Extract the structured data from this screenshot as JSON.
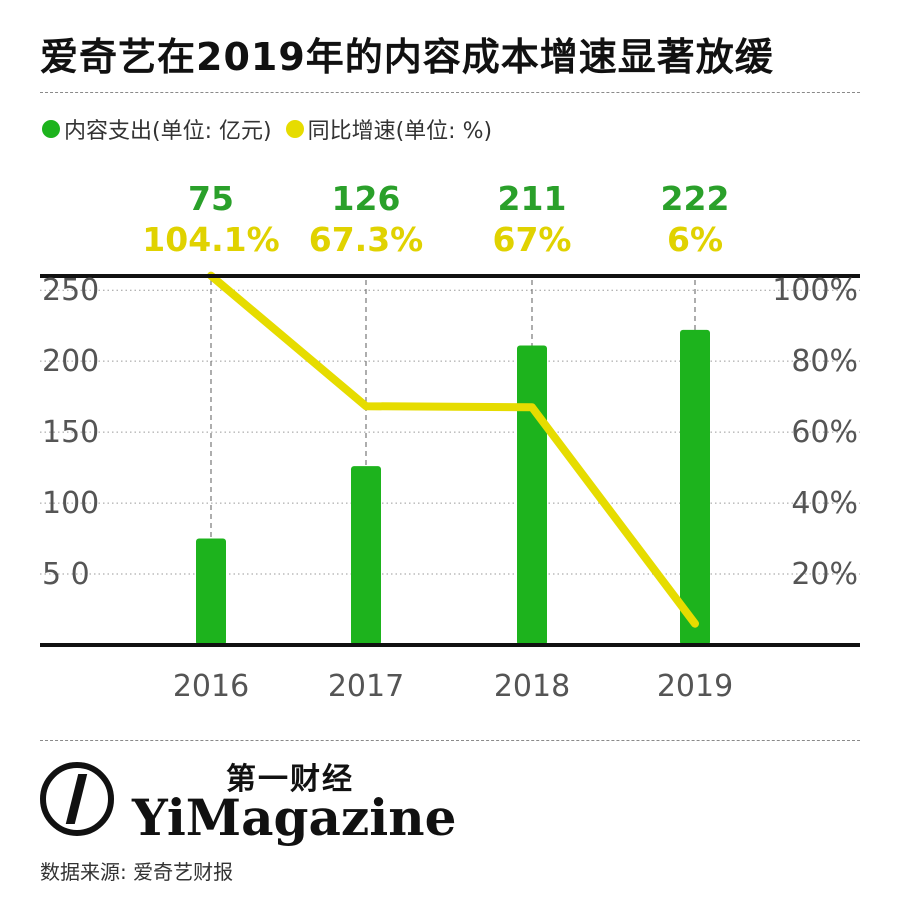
{
  "title": "爱奇艺在2019年的内容成本增速显著放缓",
  "legend": [
    {
      "label": "内容支出(单位: 亿元)",
      "color": "#1db31d"
    },
    {
      "label": "同比增速(单位: %)",
      "color": "#e6dc00"
    }
  ],
  "chart_data": {
    "type": "bar",
    "categories": [
      "2016",
      "2017",
      "2018",
      "2019"
    ],
    "series": [
      {
        "name": "内容支出(单位: 亿元)",
        "type": "bar",
        "axis": "left",
        "color": "#1db31d",
        "values": [
          75,
          126,
          211,
          222
        ]
      },
      {
        "name": "同比增速(单位: %)",
        "type": "line",
        "axis": "right",
        "color": "#e6dc00",
        "values": [
          104.1,
          67.3,
          67,
          6
        ]
      }
    ],
    "value_labels": [
      "75",
      "126",
      "211",
      "222"
    ],
    "rate_labels": [
      "104.1%",
      "67.3%",
      "67%",
      "6%"
    ],
    "left_axis": {
      "ticks": [
        "250",
        "200",
        "150",
        "100",
        "5 0"
      ],
      "tick_values": [
        250,
        200,
        150,
        100,
        50
      ],
      "range": [
        0,
        260
      ]
    },
    "right_axis": {
      "ticks": [
        "100%",
        "80%",
        "60%",
        "40%",
        "20%"
      ],
      "tick_values": [
        100,
        80,
        60,
        40,
        20
      ],
      "range": [
        0,
        104
      ]
    },
    "grid": true
  },
  "brand": {
    "cn": "第一财经",
    "en": "YiMagazine"
  },
  "source": "数据来源: 爱奇艺财报"
}
